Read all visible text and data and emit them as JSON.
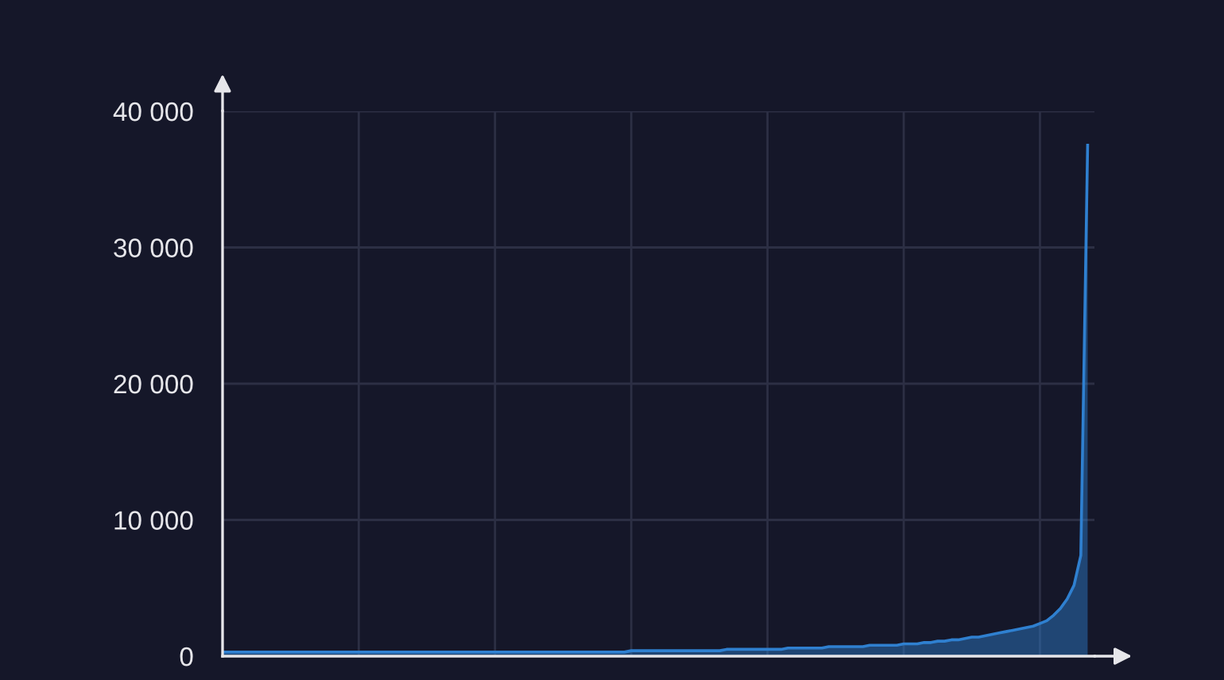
{
  "chart_data": {
    "type": "area",
    "categories": [
      null,
      null,
      null,
      null,
      null,
      null,
      null,
      null,
      null,
      null,
      null,
      null,
      null,
      null,
      null,
      null,
      null,
      null,
      null,
      null,
      null,
      null,
      null,
      null,
      null,
      null,
      null,
      null,
      null,
      null,
      null,
      null,
      null,
      null,
      null,
      null,
      null,
      null,
      null,
      null,
      null,
      null,
      null,
      null,
      null,
      null,
      null,
      null,
      null,
      null,
      null,
      null,
      null,
      null,
      null,
      null,
      null,
      null,
      null,
      null,
      null,
      null,
      null,
      null,
      null,
      null,
      null,
      null,
      null,
      null,
      null,
      null,
      null,
      null,
      null,
      null,
      null,
      null,
      null,
      null,
      null,
      null,
      null,
      null,
      null,
      null,
      null,
      null,
      null,
      null,
      null,
      null,
      null,
      null,
      null,
      null,
      null,
      null,
      null,
      null,
      null,
      null,
      null,
      null,
      null,
      null,
      null,
      null,
      null,
      null,
      null,
      null,
      null,
      null,
      null,
      null,
      null,
      null,
      null,
      null,
      null,
      null,
      null,
      null,
      null,
      null,
      null,
      null
    ],
    "series": [
      {
        "color": "#2f80d0",
        "values": [
          300,
          300,
          300,
          300,
          300,
          300,
          300,
          300,
          300,
          300,
          300,
          300,
          300,
          300,
          300,
          300,
          300,
          300,
          300,
          300,
          300,
          300,
          300,
          300,
          300,
          300,
          300,
          300,
          300,
          300,
          300,
          300,
          300,
          300,
          300,
          300,
          300,
          300,
          300,
          300,
          300,
          300,
          300,
          300,
          300,
          300,
          300,
          300,
          300,
          300,
          300,
          300,
          300,
          300,
          300,
          300,
          300,
          300,
          300,
          300,
          400,
          400,
          400,
          400,
          400,
          400,
          400,
          400,
          400,
          400,
          400,
          400,
          400,
          400,
          500,
          500,
          500,
          500,
          500,
          500,
          500,
          500,
          500,
          600,
          600,
          600,
          600,
          600,
          600,
          700,
          700,
          700,
          700,
          700,
          700,
          800,
          800,
          800,
          800,
          800,
          900,
          900,
          900,
          1000,
          1000,
          1100,
          1100,
          1200,
          1200,
          1300,
          1400,
          1400,
          1500,
          1600,
          1700,
          1800,
          1900,
          2000,
          2100,
          2200,
          2400,
          2600,
          3000,
          3500,
          4200,
          5200,
          7400,
          37500
        ]
      }
    ],
    "ylim": [
      0,
      40000
    ],
    "yticks": [
      0,
      {
        "value": 10000,
        "label": "10 000"
      },
      {
        "value": 20000,
        "label": "20 000"
      },
      {
        "value": 30000,
        "label": "30 000"
      },
      {
        "value": 40000,
        "label": "40 000"
      }
    ],
    "tick_labels": "y",
    "grid": true
  }
}
